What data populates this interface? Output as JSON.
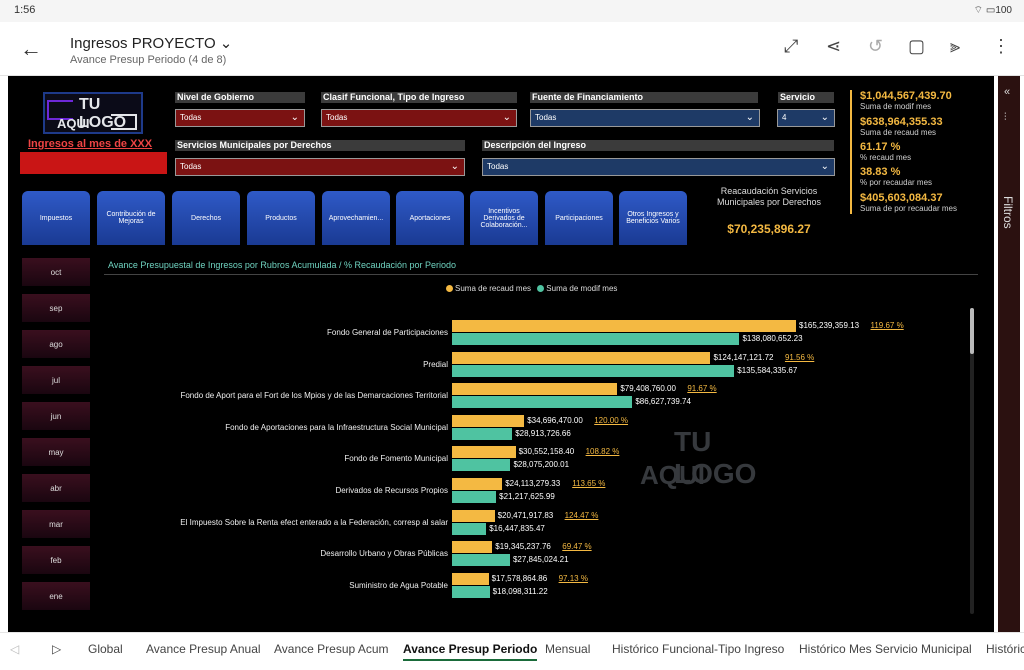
{
  "status": {
    "time": "1:56",
    "battery": "100"
  },
  "header": {
    "title": "Ingresos PROYECTO",
    "subtitle": "Avance Presup Periodo (4 de 8)"
  },
  "logo": {
    "line1": "TU LOGO",
    "line2": "AQUI"
  },
  "ingresos_label": "Ingresos al mes de XXX",
  "slicers": {
    "nivel": {
      "label": "Nivel de Gobierno",
      "value": "Todas"
    },
    "clasif": {
      "label": "Clasif Funcional, Tipo de Ingreso",
      "value": "Todas"
    },
    "fuente": {
      "label": "Fuente de Financiamiento",
      "value": "Todas"
    },
    "servicio": {
      "label": "Servicio",
      "value": "4"
    },
    "serv_mun": {
      "label": "Servicios Municipales por Derechos",
      "value": "Todas"
    },
    "descripcion": {
      "label": "Descripción del Ingreso",
      "value": "Todas"
    }
  },
  "kpis": [
    {
      "value": "$1,044,567,439.70",
      "label": "Suma de modif mes"
    },
    {
      "value": "$638,964,355.33",
      "label": "Suma de recaud mes"
    },
    {
      "value": "61.17 %",
      "label": "% recaud mes"
    },
    {
      "value": "38.83 %",
      "label": "% por recaudar mes"
    },
    {
      "value": "$405,603,084.37",
      "label": "Suma de por recaudar mes"
    }
  ],
  "rubros": [
    "Impuestos",
    "Contribución de Mejoras",
    "Derechos",
    "Productos",
    "Aprovechamien...",
    "Aportaciones",
    "Incentivos Derivados de Colaboración...",
    "Participaciones",
    "Otros Ingresos y Beneficios Varios"
  ],
  "recaudacion": {
    "title": "Reacaudación Servicios Municipales por Derechos",
    "value": "$70,235,896.27"
  },
  "months": [
    "oct",
    "sep",
    "ago",
    "jul",
    "jun",
    "may",
    "abr",
    "mar",
    "feb",
    "ene"
  ],
  "chart_data": {
    "type": "bar",
    "title": "Avance Presupuestal de Ingresos por Rubros Acumulada / % Recaudación por Periodo",
    "orientation": "horizontal",
    "series": [
      {
        "name": "Suma de recaud mes",
        "color": "#f4b942"
      },
      {
        "name": "Suma de modif mes",
        "color": "#4fc3a1"
      }
    ],
    "max": 165239359.13,
    "rows": [
      {
        "category": "Fondo General de Participaciones",
        "recaud": 165239359.13,
        "recaud_label": "$165,239,359.13",
        "pct": "119.67 %",
        "modif": 138080652.23,
        "modif_label": "$138,080,652.23"
      },
      {
        "category": "Predial",
        "recaud": 124147121.72,
        "recaud_label": "$124,147,121.72",
        "pct": "91.56 %",
        "modif": 135584335.67,
        "modif_label": "$135,584,335.67"
      },
      {
        "category": "Fondo de Aport para el Fort de los Mpios y de las Demarcaciones Territorial",
        "recaud": 79408760.0,
        "recaud_label": "$79,408,760.00",
        "pct": "91.67 %",
        "modif": 86627739.74,
        "modif_label": "$86,627,739.74"
      },
      {
        "category": "Fondo de Aportaciones para la Infraestructura Social Municipal",
        "recaud": 34696470.0,
        "recaud_label": "$34,696,470.00",
        "pct": "120.00 %",
        "modif": 28913726.66,
        "modif_label": "$28,913,726.66"
      },
      {
        "category": "Fondo de Fomento Municipal",
        "recaud": 30552158.4,
        "recaud_label": "$30,552,158.40",
        "pct": "108.82 %",
        "modif": 28075200.01,
        "modif_label": "$28,075,200.01"
      },
      {
        "category": "Derivados de Recursos Propios",
        "recaud": 24113279.33,
        "recaud_label": "$24,113,279.33",
        "pct": "113.65 %",
        "modif": 21217625.99,
        "modif_label": "$21,217,625.99"
      },
      {
        "category": "El Impuesto Sobre la Renta efect enterado a la Federación, corresp al salar",
        "recaud": 20471917.83,
        "recaud_label": "$20,471,917.83",
        "pct": "124.47 %",
        "modif": 16447835.47,
        "modif_label": "$16,447,835.47"
      },
      {
        "category": "Desarrollo Urbano y Obras Públicas",
        "recaud": 19345237.76,
        "recaud_label": "$19,345,237.76",
        "pct": "69.47 %",
        "modif": 27845024.21,
        "modif_label": "$27,845,024.21"
      },
      {
        "category": "Suministro de Agua Potable",
        "recaud": 17578864.86,
        "recaud_label": "$17,578,864.86",
        "pct": "97.13 %",
        "modif": 18098311.22,
        "modif_label": "$18,098,311.22"
      }
    ]
  },
  "side_panel": {
    "label": "Filtros"
  },
  "tabs": [
    "Global",
    "Avance Presup Anual",
    "Avance Presup Acum",
    "Avance Presup Periodo",
    "Mensual",
    "Histórico Funcional-Tipo Ingreso",
    "Histórico Mes Servicio Municipal",
    "Histórico"
  ],
  "active_tab": "Avance Presup Periodo"
}
